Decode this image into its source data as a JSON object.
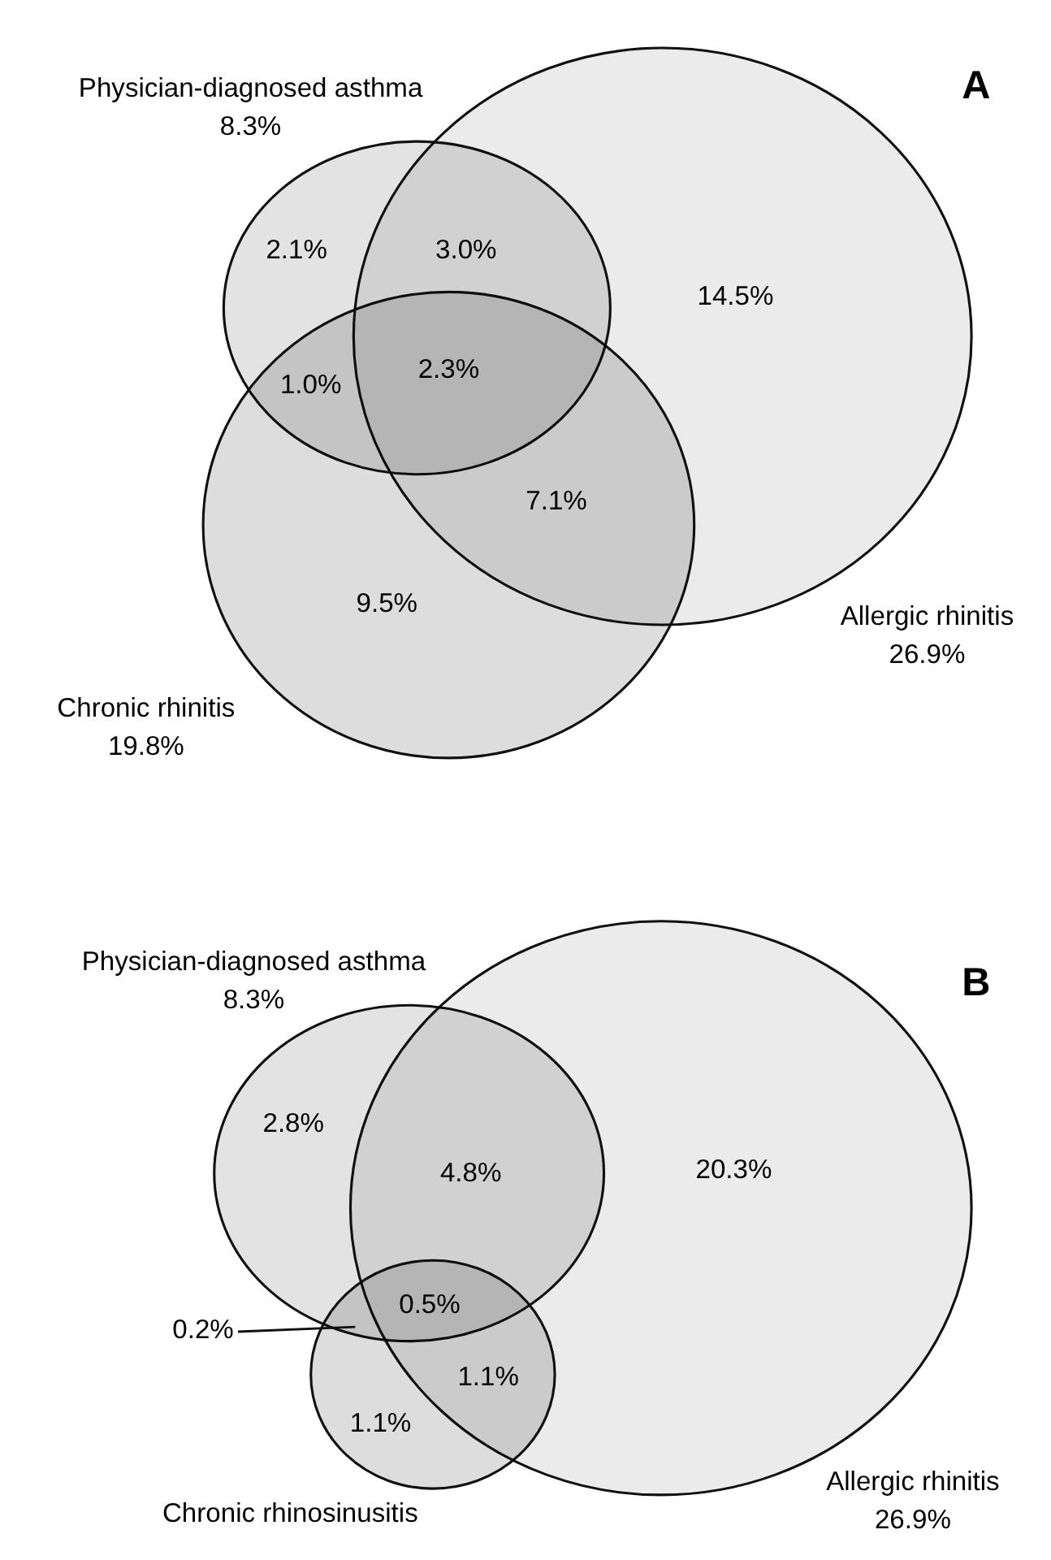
{
  "chart_data": [
    {
      "type": "other",
      "title": "A",
      "categories": [
        "Physician-diagnosed asthma",
        "Allergic rhinitis",
        "Chronic rhinitis"
      ],
      "values": [
        8.3,
        26.9,
        19.8
      ],
      "value_labels": [
        "8.3%",
        "26.9%",
        "19.8%"
      ],
      "colors": [
        "#e3e3e3",
        "#ebebeb",
        "#dddddd"
      ],
      "annotations": [
        "2.1%",
        "3.0%",
        "14.5%",
        "1.0%",
        "2.3%",
        "7.1%",
        "9.5%"
      ]
    },
    {
      "type": "other",
      "title": "B",
      "categories": [
        "Physician-diagnosed asthma",
        "Allergic rhinitis",
        "Chronic rhinosinusitis"
      ],
      "values": [
        8.3,
        26.9,
        null
      ],
      "value_labels": [
        "8.3%",
        "26.9%",
        null
      ],
      "colors": [
        "#e3e3e3",
        "#ebebeb",
        "#dddddd"
      ],
      "annotations": [
        "2.8%",
        "4.8%",
        "20.3%",
        "0.5%",
        "0.2%",
        "1.1%",
        "1.1%"
      ]
    }
  ]
}
